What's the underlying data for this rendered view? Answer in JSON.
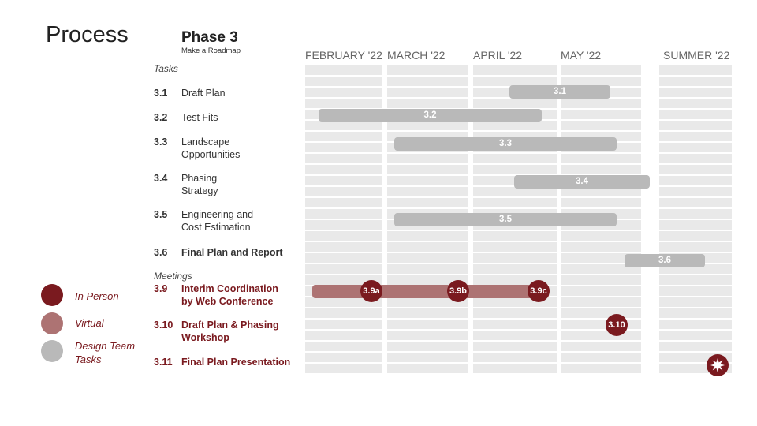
{
  "title": "Process",
  "phase": {
    "title": "Phase 3",
    "subtitle": "Make a Roadmap"
  },
  "sections": {
    "tasks": "Tasks",
    "meetings": "Meetings"
  },
  "months": [
    "FEBRUARY '22",
    "MARCH '22",
    "APRIL '22",
    "MAY '22",
    "SUMMER '22"
  ],
  "tasks": [
    {
      "num": "3.1",
      "name": "Draft Plan",
      "bar_label": "3.1"
    },
    {
      "num": "3.2",
      "name": "Test Fits",
      "bar_label": "3.2"
    },
    {
      "num": "3.3",
      "name_l1": "Landscape",
      "name_l2": "Opportunities",
      "bar_label": "3.3"
    },
    {
      "num": "3.4",
      "name_l1": "Phasing",
      "name_l2": "Strategy",
      "bar_label": "3.4"
    },
    {
      "num": "3.5",
      "name_l1": "Engineering and",
      "name_l2": "Cost Estimation",
      "bar_label": "3.5"
    },
    {
      "num": "3.6",
      "name": "Final Plan and Report",
      "bar_label": "3.6"
    }
  ],
  "meetings": [
    {
      "num": "3.9",
      "name_l1": "Interim Coordination",
      "name_l2": "by Web Conference",
      "markers": [
        "3.9a",
        "3.9b",
        "3.9c"
      ]
    },
    {
      "num": "3.10",
      "name_l1": "Draft Plan & Phasing",
      "name_l2": "Workshop",
      "marker": "3.10"
    },
    {
      "num": "3.11",
      "name": "Final Plan Presentation",
      "marker_icon": "starburst-icon"
    }
  ],
  "legend": [
    {
      "label": "In Person",
      "color": "#7a1a1f"
    },
    {
      "label": "Virtual",
      "color": "#ad7373"
    },
    {
      "label_l1": "Design Team",
      "label_l2": "Tasks",
      "color": "#b9b9b9"
    }
  ],
  "colors": {
    "in_person": "#7a1a1f",
    "virtual": "#ad7373",
    "task": "#b9b9b9",
    "grid": "#e9e9e9"
  }
}
